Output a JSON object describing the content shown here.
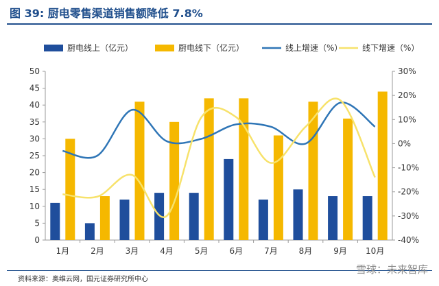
{
  "header": {
    "title": "图 39: 厨电零售渠道销售额降低 7.8%"
  },
  "footer": {
    "source": "资料来源：奥维云网，国元证券研究所中心",
    "watermark": "雪球：未来智库"
  },
  "colors": {
    "online_bar": "#1f4e9c",
    "offline_bar": "#f5b800",
    "online_line": "#2e75b6",
    "offline_line": "#f7e26b",
    "axis": "#999999"
  },
  "chart_data": {
    "type": "bar",
    "categories": [
      "1月",
      "2月",
      "3月",
      "4月",
      "5月",
      "6月",
      "7月",
      "8月",
      "9月",
      "10月"
    ],
    "series": [
      {
        "name": "厨电线上（亿元）",
        "kind": "bar",
        "axis": "left",
        "values": [
          11,
          5,
          12,
          14,
          14,
          24,
          12,
          15,
          13,
          13
        ]
      },
      {
        "name": "厨电线下（亿元）",
        "kind": "bar",
        "axis": "left",
        "values": [
          30,
          13,
          41,
          35,
          42,
          42,
          31,
          41,
          36,
          44
        ]
      },
      {
        "name": "线上增速（%）",
        "kind": "line",
        "axis": "right",
        "values": [
          -3,
          -5,
          14,
          1,
          2,
          8,
          7,
          0,
          17,
          7
        ]
      },
      {
        "name": "线下增速（%）",
        "kind": "line",
        "axis": "right",
        "values": [
          -21,
          -22,
          -13,
          -30,
          11,
          11,
          -8,
          7,
          18,
          -14
        ]
      }
    ],
    "ylim_left": [
      0,
      50
    ],
    "yticks_left": [
      "0",
      "5",
      "10",
      "15",
      "20",
      "25",
      "30",
      "35",
      "40",
      "45",
      "50"
    ],
    "ylim_right": [
      -40,
      30
    ],
    "yticks_right": [
      "-40%",
      "-30%",
      "-20%",
      "-10%",
      "0%",
      "10%",
      "20%",
      "30%"
    ],
    "legend_position": "top",
    "grid": false
  }
}
